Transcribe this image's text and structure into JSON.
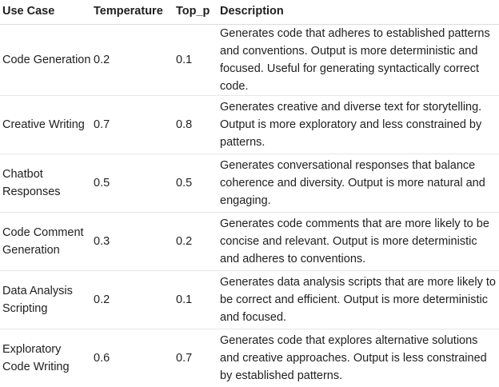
{
  "table": {
    "headers": [
      "Use Case",
      "Temperature",
      "Top_p",
      "Description"
    ],
    "rows": [
      {
        "use_case": "Code Generation",
        "temperature": "0.2",
        "top_p": "0.1",
        "description": "Generates code that adheres to established patterns and conventions. Output is more deterministic and focused. Useful for generating syntactically correct code."
      },
      {
        "use_case": "Creative Writing",
        "temperature": "0.7",
        "top_p": "0.8",
        "description": "Generates creative and diverse text for storytelling. Output is more exploratory and less constrained by patterns."
      },
      {
        "use_case": "Chatbot Responses",
        "temperature": "0.5",
        "top_p": "0.5",
        "description": "Generates conversational responses that balance coherence and diversity. Output is more natural and engaging."
      },
      {
        "use_case": "Code Comment Generation",
        "temperature": "0.3",
        "top_p": "0.2",
        "description": "Generates code comments that are more likely to be concise and relevant. Output is more deterministic and adheres to conventions."
      },
      {
        "use_case": "Data Analysis Scripting",
        "temperature": "0.2",
        "top_p": "0.1",
        "description": "Generates data analysis scripts that are more likely to be correct and efficient. Output is more deterministic and focused."
      },
      {
        "use_case": "Exploratory Code Writing",
        "temperature": "0.6",
        "top_p": "0.7",
        "description": "Generates code that explores alternative solutions and creative approaches. Output is less constrained by established patterns."
      }
    ]
  }
}
